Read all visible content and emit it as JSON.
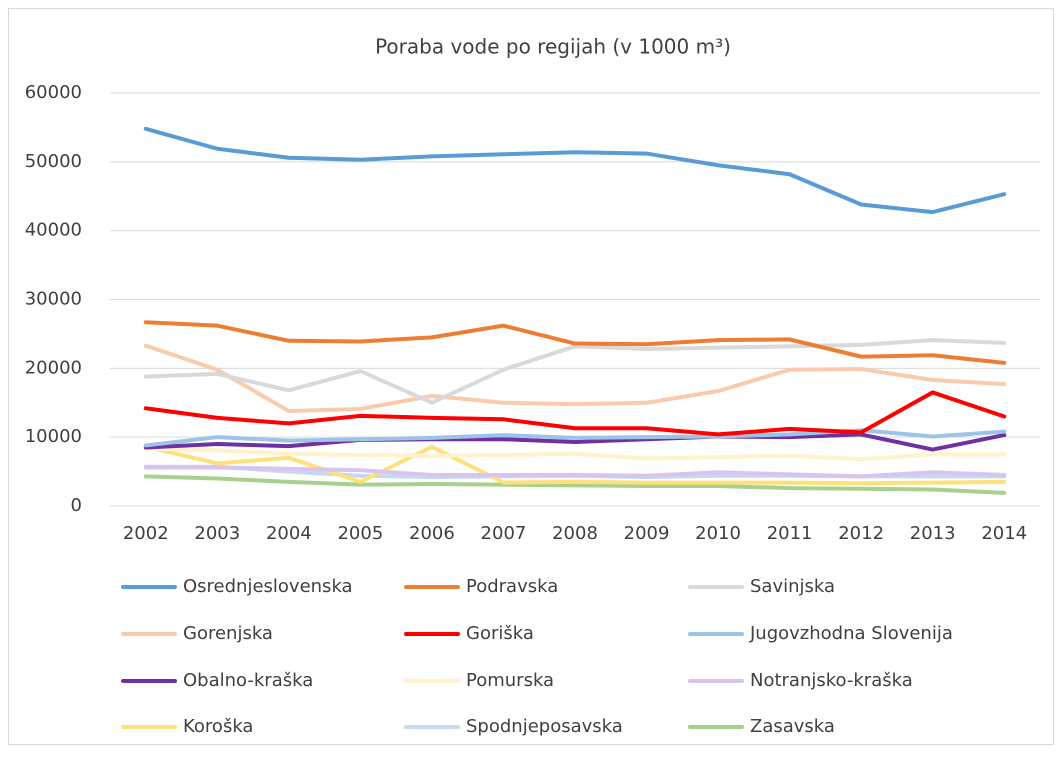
{
  "chart_data": {
    "type": "line",
    "title": "Poraba vode po regijah (v 1000 m³)",
    "categories": [
      "2002",
      "2003",
      "2004",
      "2005",
      "2006",
      "2007",
      "2008",
      "2009",
      "2010",
      "2011",
      "2012",
      "2013",
      "2014"
    ],
    "ylim": [
      0,
      60000
    ],
    "yticks": [
      0,
      10000,
      20000,
      30000,
      40000,
      50000,
      60000
    ],
    "grid": true,
    "legend": "bottom",
    "series": [
      {
        "name": "Osrednjeslovenska",
        "color": "#5b9bd5",
        "values": [
          54800,
          51900,
          50600,
          50300,
          50800,
          51100,
          51400,
          51200,
          49500,
          48200,
          43800,
          42700,
          45300
        ]
      },
      {
        "name": "Podravska",
        "color": "#ed7d31",
        "values": [
          26700,
          26200,
          24000,
          23900,
          24500,
          26200,
          23600,
          23500,
          24100,
          24200,
          21700,
          21900,
          20800
        ]
      },
      {
        "name": "Savinjska",
        "color": "#d9d9d9",
        "values": [
          18800,
          19200,
          16800,
          19600,
          15000,
          19800,
          23200,
          22800,
          23000,
          23200,
          23400,
          24100,
          23700
        ]
      },
      {
        "name": "Gorenjska",
        "color": "#f8cbad",
        "values": [
          23300,
          19800,
          13800,
          14100,
          16000,
          15000,
          14800,
          15000,
          16700,
          19800,
          19900,
          18300,
          17700
        ]
      },
      {
        "name": "Goriška",
        "color": "#ff0000",
        "values": [
          14200,
          12800,
          12000,
          13100,
          12800,
          12600,
          11300,
          11300,
          10400,
          11200,
          10700,
          16500,
          13000
        ]
      },
      {
        "name": "Jugovzhodna Slovenija",
        "color": "#9dc3e6",
        "values": [
          8800,
          10000,
          9500,
          9700,
          9900,
          10300,
          9900,
          10000,
          10100,
          10400,
          11000,
          10100,
          10800
        ]
      },
      {
        "name": "Obalno-kraška",
        "color": "#7030a0",
        "values": [
          8500,
          9000,
          8700,
          9600,
          9700,
          9700,
          9300,
          9700,
          10100,
          10000,
          10400,
          8200,
          10300
        ]
      },
      {
        "name": "Pomurska",
        "color": "#fff2cc",
        "values": [
          8300,
          8100,
          7600,
          7400,
          7300,
          7400,
          7600,
          6900,
          7100,
          7300,
          6800,
          7500,
          7500
        ]
      },
      {
        "name": "Notranjsko-kraška",
        "color": "#d9c3ef",
        "values": [
          5600,
          5600,
          5400,
          5200,
          4500,
          4500,
          4500,
          4400,
          4900,
          4600,
          4300,
          4900,
          4500
        ]
      },
      {
        "name": "Koroška",
        "color": "#ffe17a",
        "values": [
          8600,
          6200,
          7000,
          3500,
          8600,
          3400,
          3500,
          3400,
          3400,
          3400,
          3300,
          3400,
          3500
        ]
      },
      {
        "name": "Spodnjeposavska",
        "color": "#c5daf0",
        "values": [
          5700,
          5700,
          5000,
          4400,
          4200,
          4300,
          4400,
          4200,
          4400,
          4400,
          4300,
          4300,
          4300
        ]
      },
      {
        "name": "Zasavska",
        "color": "#a9d18e",
        "values": [
          4300,
          4000,
          3500,
          3100,
          3200,
          3100,
          3000,
          2900,
          2900,
          2600,
          2500,
          2400,
          1900
        ]
      }
    ]
  }
}
